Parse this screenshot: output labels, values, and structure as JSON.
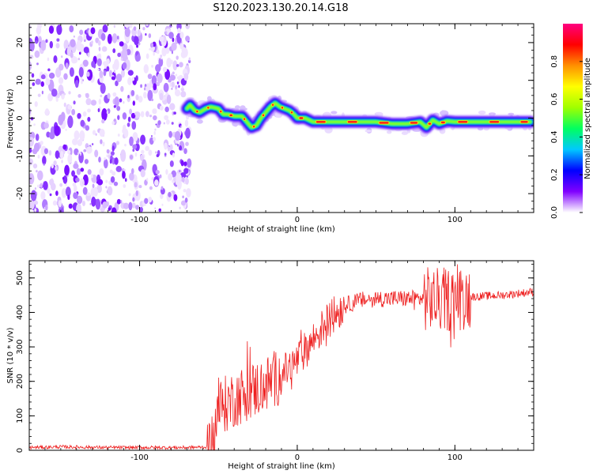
{
  "title": "S120.2023.130.20.14.G18",
  "chart_data": [
    {
      "type": "heatmap",
      "xlabel": "Height of straight line (km)",
      "ylabel": "Frequency (Hz)",
      "xlim": [
        -170,
        150
      ],
      "ylim": [
        -25,
        25
      ],
      "xticks": [
        -100,
        0,
        100
      ],
      "yticks": [
        -20,
        -10,
        0,
        10,
        20
      ],
      "colorbar": {
        "label": "Normalized spectral amplitude",
        "range": [
          0,
          1
        ],
        "ticks": [
          "0.0",
          "0.2",
          "0.4",
          "0.6",
          "0.8"
        ],
        "colors": [
          "#ffffff",
          "#8000ff",
          "#0000ff",
          "#00c8ff",
          "#00ff60",
          "#a0ff00",
          "#ffff00",
          "#ff9000",
          "#ff0000",
          "#ff0080"
        ]
      },
      "noise_region_x": [
        -170,
        -68
      ],
      "ridge": {
        "x": [
          -70,
          -68,
          -65,
          -62,
          -58,
          -55,
          -50,
          -47,
          -44,
          -40,
          -35,
          -32,
          -29,
          -26,
          -23,
          -20,
          -17,
          -14,
          -11,
          -8,
          -5,
          -2,
          0,
          5,
          10,
          20,
          30,
          40,
          50,
          60,
          70,
          78,
          82,
          86,
          90,
          95,
          100,
          110,
          120,
          130,
          140,
          148
        ],
        "y": [
          2.5,
          3.5,
          2,
          1.5,
          2.5,
          3,
          2.5,
          1,
          1,
          0.5,
          0.5,
          -1,
          -2.5,
          -2,
          0,
          1.5,
          3,
          4,
          3,
          2.5,
          2,
          1,
          0,
          0,
          -1,
          -1,
          -1,
          -1,
          -1,
          -1.5,
          -1.5,
          -1,
          -2.5,
          -0.5,
          -1.5,
          -0.8,
          -1,
          -1,
          -1,
          -1,
          -1,
          -1
        ]
      }
    },
    {
      "type": "line",
      "xlabel": "Height of straight line (km)",
      "ylabel": "SNR (10 * v/v)",
      "xlim": [
        -170,
        150
      ],
      "ylim": [
        0,
        550
      ],
      "xticks": [
        -100,
        0,
        100
      ],
      "yticks": [
        0,
        100,
        200,
        300,
        400,
        500
      ],
      "color": "#ee2020",
      "envelope": {
        "x": [
          -170,
          -150,
          -120,
          -90,
          -70,
          -55,
          -50,
          -40,
          -30,
          -20,
          -10,
          0,
          10,
          20,
          30,
          40,
          50,
          60,
          70,
          80,
          90,
          100,
          110,
          130,
          150
        ],
        "y": [
          8,
          10,
          8,
          8,
          8,
          10,
          120,
          150,
          170,
          190,
          220,
          260,
          320,
          380,
          420,
          435,
          440,
          440,
          440,
          440,
          435,
          440,
          445,
          450,
          460
        ]
      }
    }
  ]
}
